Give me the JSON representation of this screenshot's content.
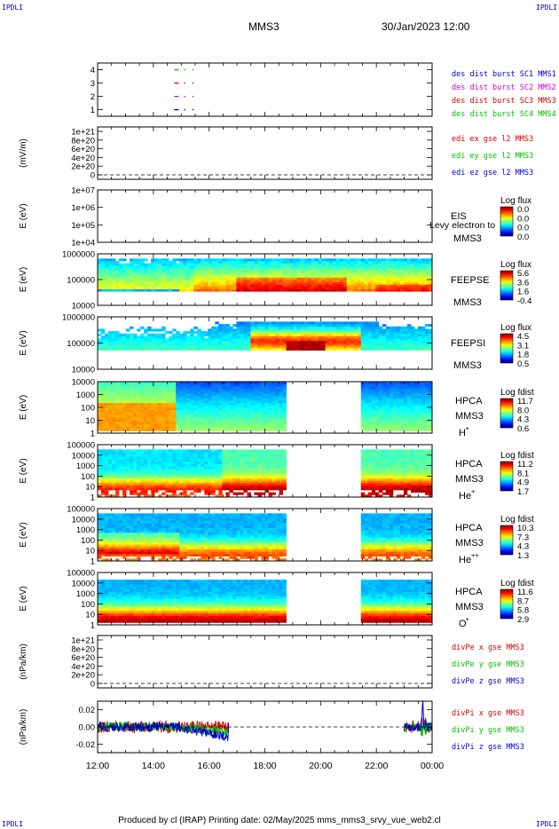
{
  "header": {
    "corner_label": "IPDLI",
    "title": "MMS3",
    "datetime": "30/Jan/2023 12:00"
  },
  "footer": {
    "text": "Produced by cl (IRAP)   Printing date: 02/May/2025   mms_mms3_srvy_vue_web2.cl"
  },
  "colors": {
    "red": "#d40000",
    "green": "#00c000",
    "blue": "#0000d0",
    "magenta": "#d000d0"
  },
  "chart_data": [
    {
      "type": "scatter",
      "name": "burst-flags",
      "ylim": [
        0.5,
        4.5
      ],
      "yticks": [
        "1",
        "2",
        "3",
        "4"
      ],
      "legend": [
        {
          "label": "des dist burst SC1 MMS1",
          "color": "#0000d0"
        },
        {
          "label": "des dist burst SC2 MMS2",
          "color": "#d000d0"
        },
        {
          "label": "des dist burst SC3 MMS3",
          "color": "#d40000"
        },
        {
          "label": "des dist burst SC4 MMS4",
          "color": "#00c000"
        }
      ],
      "series": [
        {
          "y": 4,
          "x": [
            14.75,
            15.1,
            15.4
          ],
          "color": "#00c000"
        },
        {
          "y": 3,
          "x": [
            14.75,
            15.1,
            15.4
          ],
          "color": "#d40000"
        },
        {
          "y": 2,
          "x": [
            14.75,
            15.1,
            15.4
          ],
          "color": "#d000d0"
        },
        {
          "y": 1,
          "x": [
            14.75,
            15.1,
            15.4
          ],
          "color": "#0000d0"
        }
      ]
    },
    {
      "type": "line",
      "name": "edi-e-field",
      "ylabel": "(mV/m)",
      "yticks": [
        "0",
        "2e+20",
        "4e+20",
        "6e+20",
        "8e+20",
        "1e+21"
      ],
      "legend": [
        {
          "label": "edi ex gse l2 MMS3",
          "color": "#d40000"
        },
        {
          "label": "edi ey gse l2 MMS3",
          "color": "#00c000"
        },
        {
          "label": "edi ez gse l2 MMS3",
          "color": "#0000d0"
        }
      ],
      "zero_line": true
    },
    {
      "type": "heatmap",
      "name": "eis",
      "ylabel": "E (eV)",
      "yticks": [
        "1e+04",
        "1e+05",
        "1e+06",
        "1e+07"
      ],
      "labels": [
        "EIS",
        "MMS3"
      ],
      "overlay_text": "Levy electron to",
      "colorbar": {
        "title": "Log flux",
        "ticks": [
          "0.0",
          "0.0",
          "0.0",
          "0.0"
        ]
      },
      "empty": true
    },
    {
      "type": "heatmap",
      "name": "feepse",
      "ylabel": "E (eV)",
      "yticks": [
        "10000",
        "100000",
        "1000000"
      ],
      "labels": [
        "FEEPSE",
        "MMS3"
      ],
      "colorbar": {
        "title": "Log flux",
        "ticks": [
          "5.6",
          "3.6",
          "1.6",
          "-0.4"
        ]
      }
    },
    {
      "type": "heatmap",
      "name": "feepsi",
      "ylabel": "E (eV)",
      "yticks": [
        "10000",
        "100000",
        "1000000"
      ],
      "labels": [
        "FEEPSI",
        "MMS3"
      ],
      "colorbar": {
        "title": "Log flux",
        "ticks": [
          "4.5",
          "3.1",
          "1.8",
          "0.5"
        ]
      }
    },
    {
      "type": "heatmap",
      "name": "hpca-h",
      "ylabel": "E (eV)",
      "yticks": [
        "1",
        "10",
        "100",
        "1000",
        "10000"
      ],
      "labels": [
        "HPCA",
        "MMS3"
      ],
      "species": "H",
      "species_sup": "+",
      "colorbar": {
        "title": "Log fdist",
        "ticks": [
          "11.7",
          "8.0",
          "4.3",
          "0.6"
        ]
      },
      "gap": [
        18.75,
        21.4
      ]
    },
    {
      "type": "heatmap",
      "name": "hpca-he",
      "ylabel": "E (eV)",
      "yticks": [
        "1",
        "10",
        "100",
        "1000",
        "10000",
        "100000"
      ],
      "labels": [
        "HPCA",
        "MMS3"
      ],
      "species": "He",
      "species_sup": "+",
      "colorbar": {
        "title": "Log fdist",
        "ticks": [
          "11.2",
          "8.1",
          "4.9",
          "1.7"
        ]
      },
      "gap": [
        18.75,
        21.4
      ]
    },
    {
      "type": "heatmap",
      "name": "hpca-hepp",
      "ylabel": "E (eV)",
      "yticks": [
        "1",
        "10",
        "100",
        "1000",
        "10000",
        "100000"
      ],
      "labels": [
        "HPCA",
        "MMS3"
      ],
      "species": "He",
      "species_sup": "++",
      "colorbar": {
        "title": "Log fdist",
        "ticks": [
          "10.3",
          "7.3",
          "4.3",
          "1.3"
        ]
      },
      "gap": [
        18.75,
        21.4
      ]
    },
    {
      "type": "heatmap",
      "name": "hpca-o",
      "ylabel": "E (eV)",
      "yticks": [
        "1",
        "10",
        "100",
        "1000",
        "10000",
        "100000"
      ],
      "labels": [
        "HPCA",
        "MMS3"
      ],
      "species": "O",
      "species_sup": "+",
      "colorbar": {
        "title": "Log fdist",
        "ticks": [
          "11.6",
          "8.7",
          "5.8",
          "2.9"
        ]
      },
      "gap": [
        18.75,
        21.4
      ]
    },
    {
      "type": "line",
      "name": "divpe",
      "ylabel": "(nPa/km)",
      "yticks": [
        "0",
        "2e+20",
        "4e+20",
        "6e+20",
        "8e+20",
        "1e+21"
      ],
      "legend": [
        {
          "label": "divPe x gse MMS3",
          "color": "#d40000"
        },
        {
          "label": "divPe y gse MMS3",
          "color": "#00c000"
        },
        {
          "label": "divPe z gse MMS3",
          "color": "#0000d0"
        }
      ],
      "zero_line": true
    },
    {
      "type": "line",
      "name": "divpi",
      "ylabel": "(nPa/km)",
      "ylim": [
        -0.03,
        0.03
      ],
      "yticks": [
        "-0.02",
        "0.00",
        "0.02"
      ],
      "legend": [
        {
          "label": "divPi x gse MMS3",
          "color": "#d40000"
        },
        {
          "label": "divPi y gse MMS3",
          "color": "#00c000"
        },
        {
          "label": "divPi z gse MMS3",
          "color": "#0000d0"
        }
      ],
      "zero_line": true,
      "segments": [
        [
          12.0,
          16.7
        ],
        [
          23.0,
          24.0
        ]
      ]
    }
  ],
  "x_axis": {
    "range": [
      12,
      24
    ],
    "ticks": [
      12,
      14,
      16,
      18,
      20,
      22,
      24
    ],
    "tick_labels": [
      "12:00",
      "14:00",
      "16:00",
      "18:00",
      "20:00",
      "22:00",
      "00:00"
    ]
  }
}
